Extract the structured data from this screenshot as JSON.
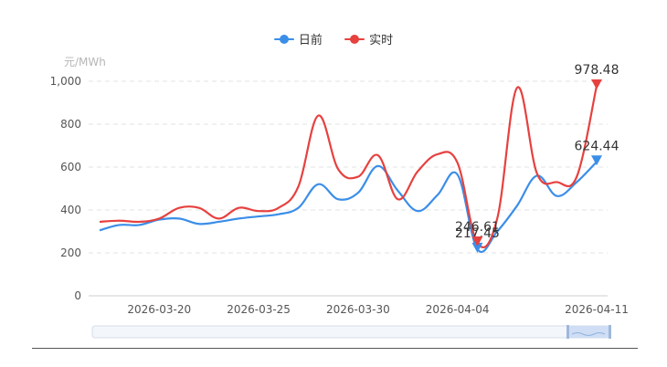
{
  "legend": [
    {
      "name": "日前",
      "color": "#3b8ee8"
    },
    {
      "name": "实时",
      "color": "#e6413f"
    }
  ],
  "chart_data": {
    "type": "line",
    "ylabel": "元/MWh",
    "ylim": [
      0,
      1000
    ],
    "yticks": [
      "0",
      "200",
      "400",
      "600",
      "800",
      "1,000"
    ],
    "xticks": [
      "2026-03-20",
      "2026-03-25",
      "2026-03-30",
      "2026-04-04",
      "2026-04-11"
    ],
    "x": [
      "2026-03-17",
      "2026-03-18",
      "2026-03-19",
      "2026-03-20",
      "2026-03-21",
      "2026-03-22",
      "2026-03-23",
      "2026-03-24",
      "2026-03-25",
      "2026-03-26",
      "2026-03-27",
      "2026-03-28",
      "2026-03-29",
      "2026-03-30",
      "2026-03-31",
      "2026-04-01",
      "2026-04-02",
      "2026-04-03",
      "2026-04-04",
      "2026-04-05",
      "2026-04-06",
      "2026-04-07",
      "2026-04-08",
      "2026-04-09",
      "2026-04-10",
      "2026-04-11"
    ],
    "series": [
      {
        "name": "日前",
        "color": "#3b8ee8",
        "values": [
          305,
          330,
          330,
          355,
          360,
          335,
          345,
          360,
          370,
          380,
          410,
          520,
          450,
          480,
          605,
          490,
          395,
          470,
          565,
          217.45,
          300,
          420,
          560,
          465,
          530,
          624.44
        ]
      },
      {
        "name": "实时",
        "color": "#e6413f",
        "values": [
          345,
          350,
          345,
          360,
          410,
          410,
          360,
          410,
          395,
          410,
          510,
          840,
          590,
          555,
          655,
          450,
          580,
          660,
          620,
          246.61,
          360,
          970,
          570,
          530,
          555,
          978.48
        ]
      }
    ],
    "annotations": [
      {
        "series": "日前",
        "label": "217.45",
        "index": 19
      },
      {
        "series": "实时",
        "label": "246.61",
        "index": 19
      },
      {
        "series": "日前",
        "label": "624.44",
        "index": 25
      },
      {
        "series": "实时",
        "label": "978.48",
        "index": 25
      }
    ],
    "grid": true,
    "legend_position": "top-center",
    "datazoom_slider": true
  }
}
